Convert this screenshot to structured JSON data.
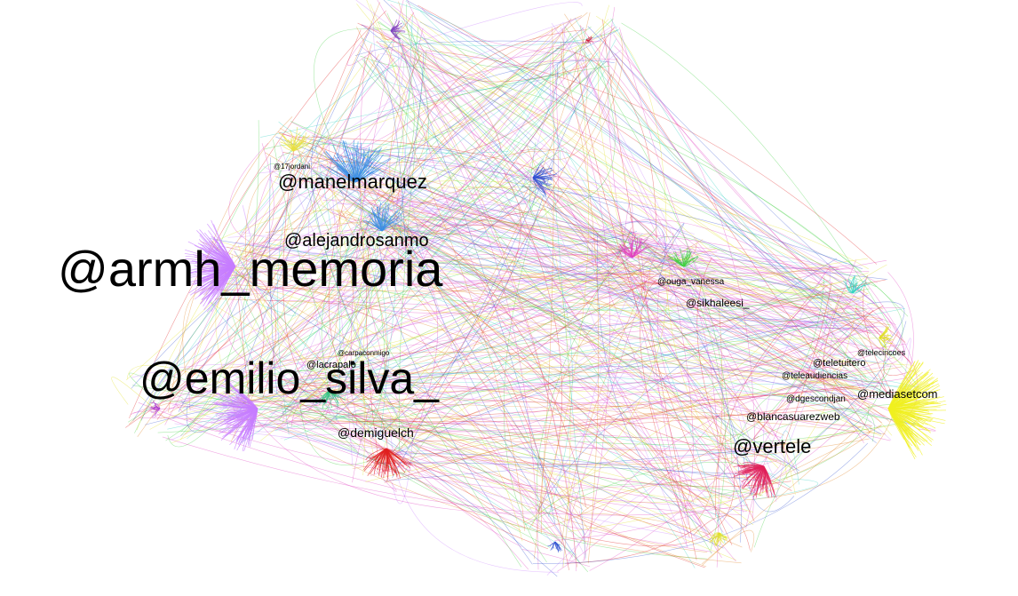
{
  "nodes": [
    {
      "label": "@armh_memoria"
    },
    {
      "label": "@emilio_silva_"
    },
    {
      "label": "@manelmarquez"
    },
    {
      "label": "@alejandrosanmo"
    },
    {
      "label": "@vertele"
    },
    {
      "label": "@demiguelch"
    },
    {
      "label": "@mediasetcom"
    },
    {
      "label": "@blancasuarezweb"
    },
    {
      "label": "@teleaudiencias"
    },
    {
      "label": "@teletuitero"
    },
    {
      "label": "@telecincoes"
    },
    {
      "label": "@dgescondjan"
    },
    {
      "label": "@sikhaleesi_"
    },
    {
      "label": "@ouga_vanessa"
    },
    {
      "label": "@17jordani"
    },
    {
      "label": "@lacrapalo"
    },
    {
      "label": "@carpaconmigo"
    }
  ]
}
